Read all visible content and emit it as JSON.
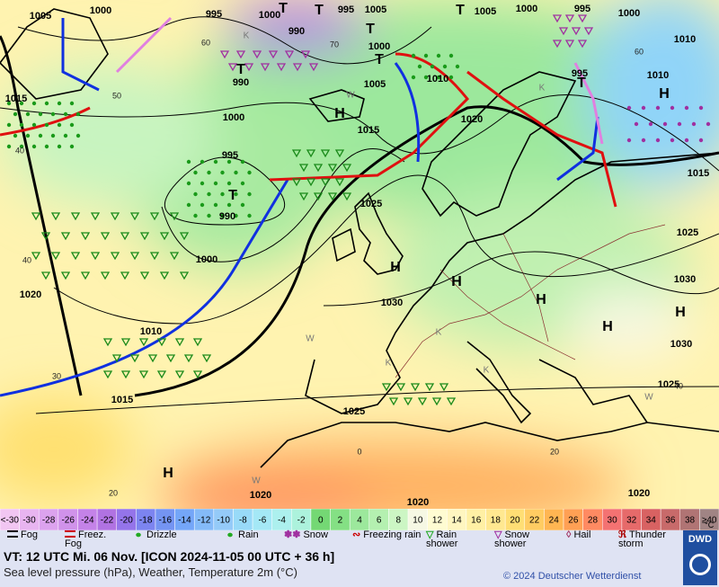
{
  "map": {
    "pressure_labels": [
      "1005",
      "1000",
      "995",
      "1000",
      "995",
      "1005",
      "1005",
      "1000",
      "995",
      "1000",
      "1010",
      "990",
      "1000",
      "990",
      "1005",
      "1010",
      "1010",
      "1015",
      "1000",
      "1015",
      "1020",
      "995",
      "990",
      "1025",
      "1015",
      "1025",
      "1000",
      "1020",
      "1030",
      "1030",
      "1010",
      "1030",
      "1015",
      "1025",
      "1025",
      "1020",
      "1020",
      "1020",
      "995"
    ],
    "centers": [
      "H",
      "H",
      "H",
      "H",
      "H",
      "H",
      "H",
      "H",
      "T",
      "T",
      "T",
      "T",
      "T",
      "T",
      "T",
      "T"
    ],
    "grid_labels": [
      "60",
      "70",
      "50",
      "40",
      "40",
      "30",
      "20",
      "0",
      "20",
      "40",
      "60"
    ],
    "wind_labels": [
      "W",
      "W",
      "W",
      "W",
      "K",
      "K",
      "K",
      "K",
      "K"
    ]
  },
  "legend": {
    "unit": "°C",
    "cells": [
      {
        "label": "<-30",
        "color": "#f2c6f2"
      },
      {
        "label": "-30",
        "color": "#e8b4f0"
      },
      {
        "label": "-28",
        "color": "#dca2ee"
      },
      {
        "label": "-26",
        "color": "#d092ea"
      },
      {
        "label": "-24",
        "color": "#c482e8"
      },
      {
        "label": "-22",
        "color": "#b072e2"
      },
      {
        "label": "-20",
        "color": "#9474ea"
      },
      {
        "label": "-18",
        "color": "#7c84f0"
      },
      {
        "label": "-16",
        "color": "#7494f2"
      },
      {
        "label": "-14",
        "color": "#74a6f8"
      },
      {
        "label": "-12",
        "color": "#84baf8"
      },
      {
        "label": "-10",
        "color": "#94caf8"
      },
      {
        "label": "-8",
        "color": "#98daf8"
      },
      {
        "label": "-6",
        "color": "#a4e8f6"
      },
      {
        "label": "-4",
        "color": "#acf0ee"
      },
      {
        "label": "-2",
        "color": "#acf2dc"
      },
      {
        "label": "0",
        "color": "#74d874"
      },
      {
        "label": "2",
        "color": "#84e084"
      },
      {
        "label": "4",
        "color": "#9ce89c"
      },
      {
        "label": "6",
        "color": "#b4f0b0"
      },
      {
        "label": "8",
        "color": "#ccf6c4"
      },
      {
        "label": "10",
        "color": "#f6f8e4"
      },
      {
        "label": "12",
        "color": "#fffcd2"
      },
      {
        "label": "14",
        "color": "#fff6c0"
      },
      {
        "label": "16",
        "color": "#fff0a4"
      },
      {
        "label": "18",
        "color": "#ffe890"
      },
      {
        "label": "20",
        "color": "#ffde74"
      },
      {
        "label": "22",
        "color": "#ffcc62"
      },
      {
        "label": "24",
        "color": "#ffb652"
      },
      {
        "label": "26",
        "color": "#ffa054"
      },
      {
        "label": "28",
        "color": "#ff8a62"
      },
      {
        "label": "30",
        "color": "#f47272"
      },
      {
        "label": "32",
        "color": "#e66a6a"
      },
      {
        "label": "34",
        "color": "#d86262"
      },
      {
        "label": "36",
        "color": "#c86a6a"
      },
      {
        "label": "38",
        "color": "#b07474"
      },
      {
        "label": "≥40",
        "color": "#a08484"
      }
    ],
    "symbols": [
      "Fog",
      "Freez. Fog",
      "Drizzle",
      "Rain",
      "Snow",
      "Freezing rain",
      "Rain shower",
      "Snow shower",
      "Hail",
      "Thunder storm"
    ]
  },
  "footer": {
    "valid_time": "VT: 12 UTC Mi.  06 Nov. [ICON 2024-11-05  00 UTC + 36 h]",
    "description": "Sea level pressure (hPa), Weather, Temperature 2m (°C)",
    "copyright": "© 2024 Deutscher Wetterdienst",
    "logo": "DWD"
  }
}
